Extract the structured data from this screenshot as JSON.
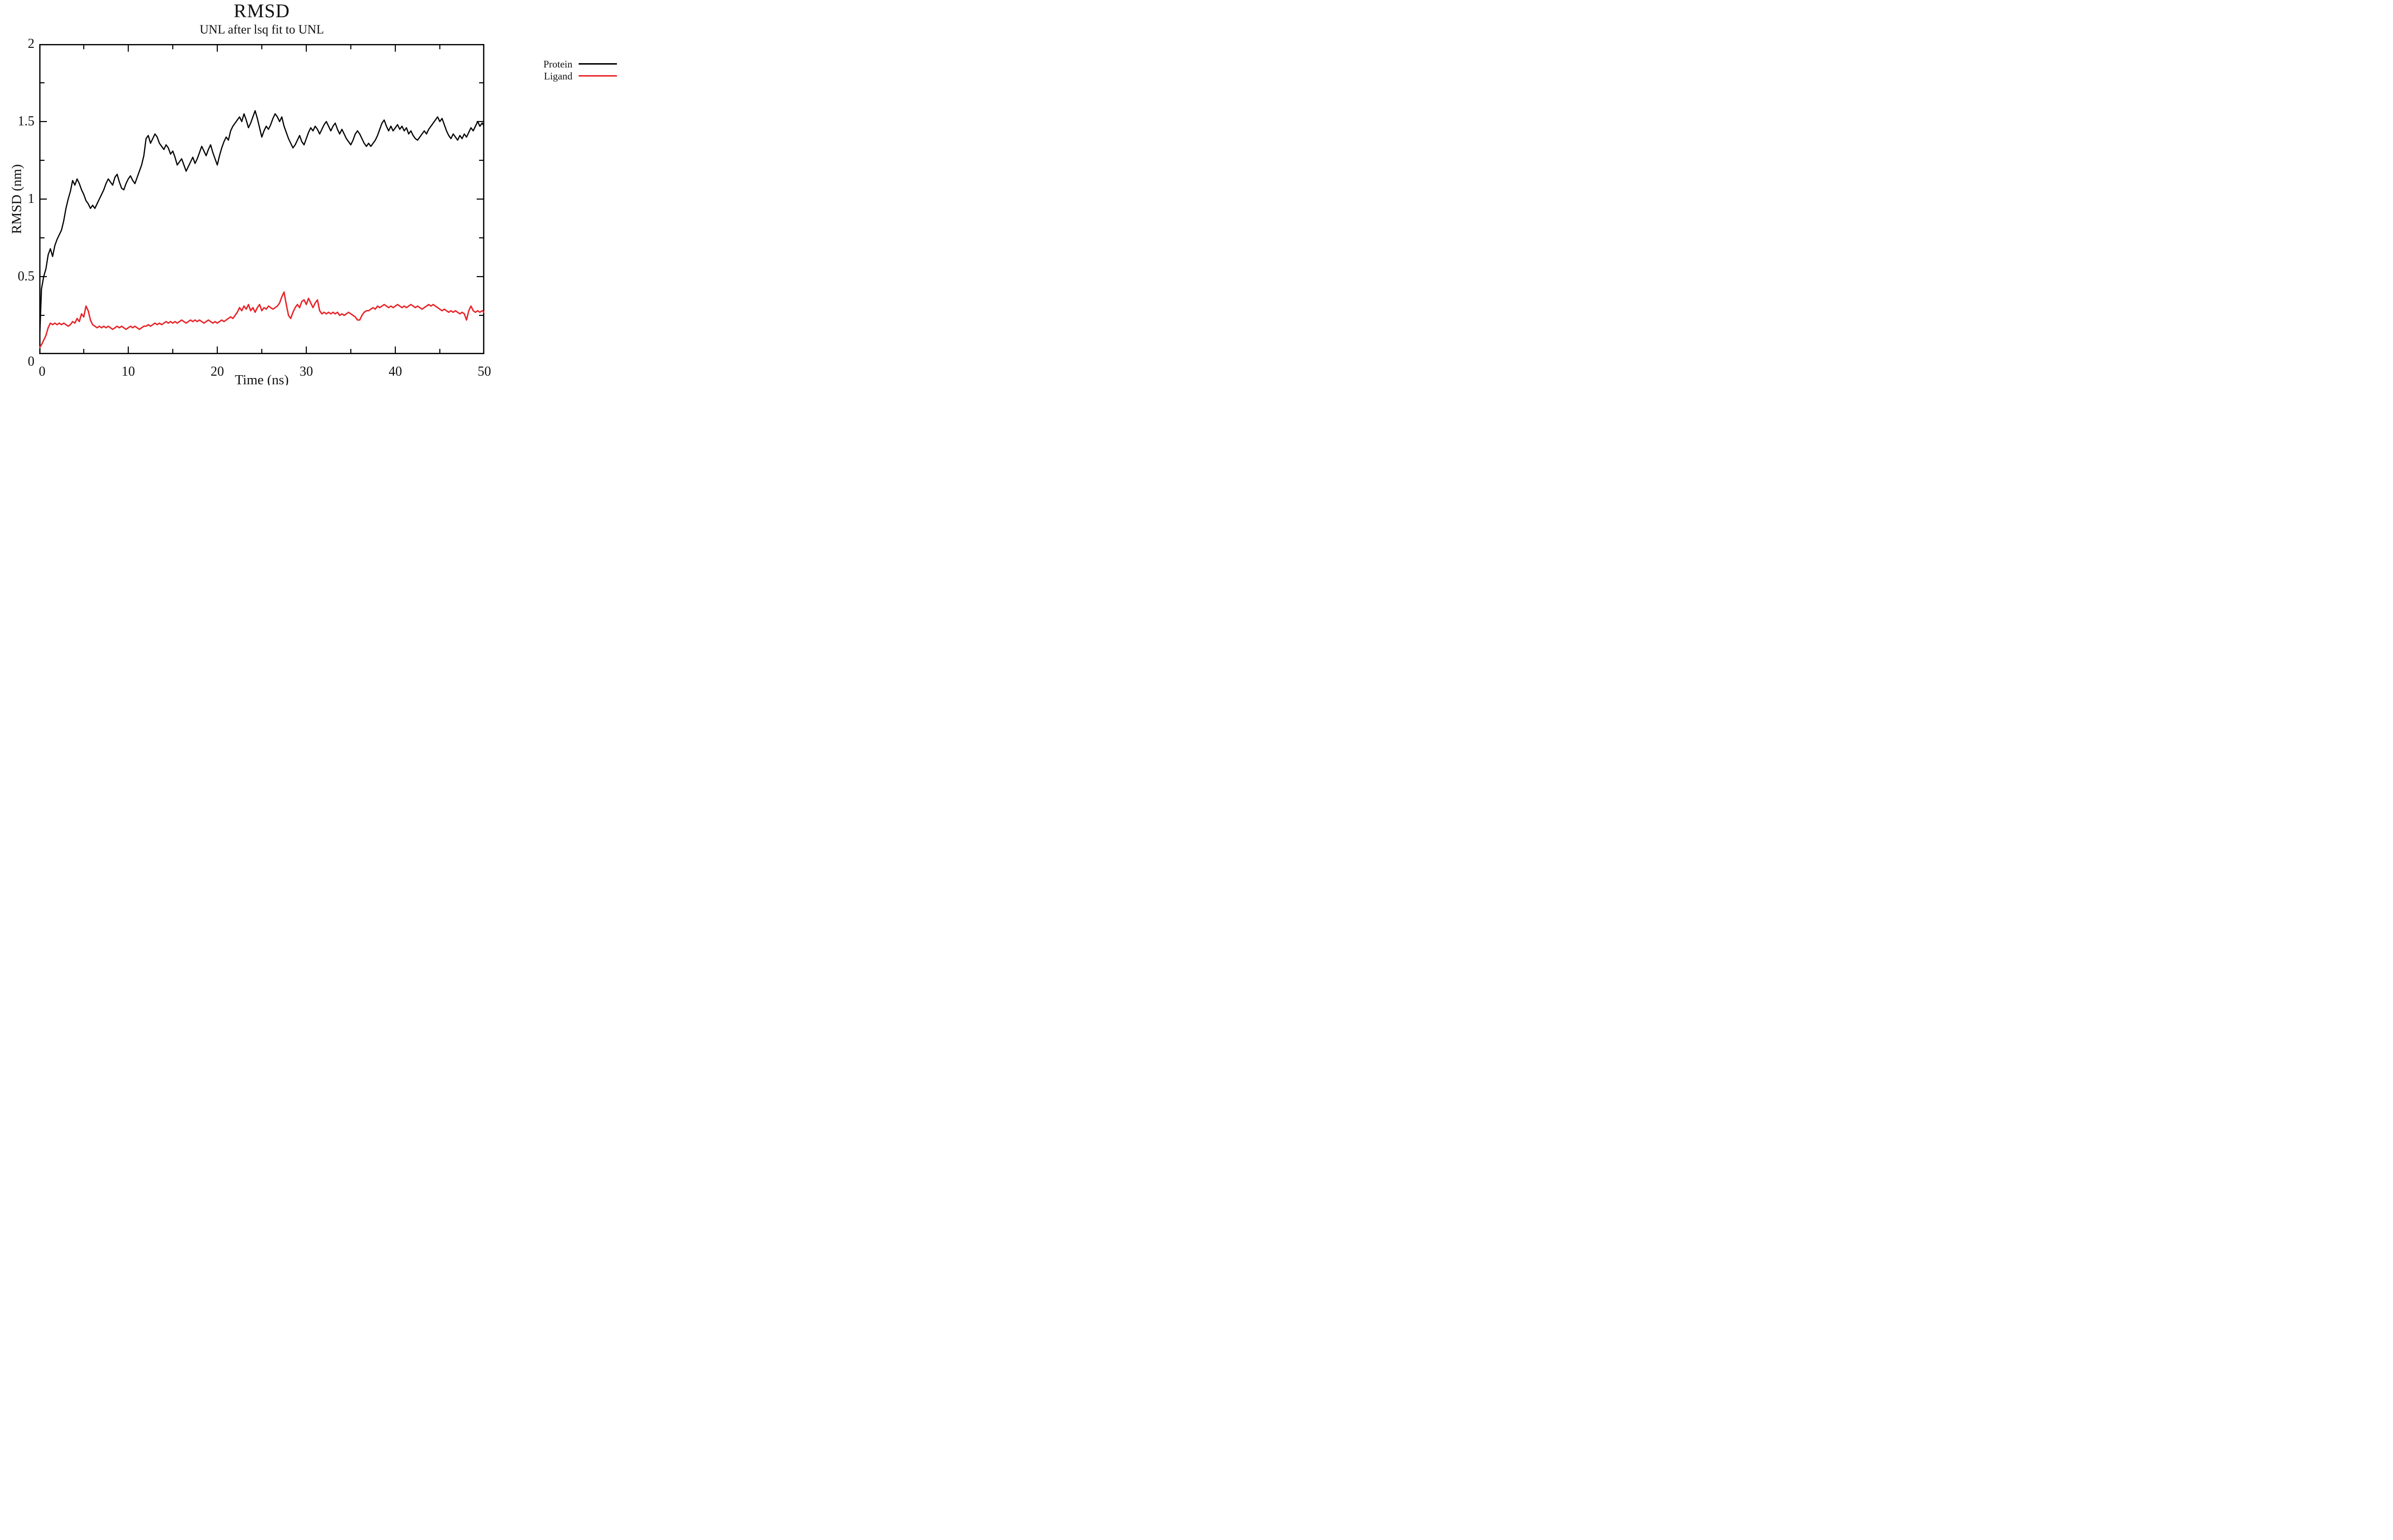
{
  "title": "RMSD",
  "subtitle": "UNL after lsq fit to UNL",
  "axes": {
    "x_label": "Time (ns)",
    "y_label": "RMSD (nm)"
  },
  "legend": [
    {
      "label": "Protein",
      "color": "#000000"
    },
    {
      "label": "Ligand",
      "color": "#e8262a"
    }
  ],
  "colors": {
    "frame": "#000000",
    "protein": "#000000",
    "ligand": "#e8262a"
  },
  "chart_data": {
    "type": "line",
    "title": "RMSD",
    "subtitle": "UNL after lsq fit to UNL",
    "xlabel": "Time (ns)",
    "ylabel": "RMSD (nm)",
    "xlim": [
      0,
      50
    ],
    "ylim": [
      0,
      2
    ],
    "grid": false,
    "legend_position": "upper-right-outside",
    "x_major_ticks": [
      0,
      10,
      20,
      30,
      40,
      50
    ],
    "x_major_labels": [
      "0",
      "10",
      "20",
      "30",
      "40",
      "50"
    ],
    "x_minor_ticks": [
      5,
      15,
      25,
      35,
      45
    ],
    "y_major_ticks": [
      0,
      0.5,
      1,
      1.5,
      2
    ],
    "y_major_labels": [
      "0",
      "0.5",
      "1",
      "1.5",
      "2"
    ],
    "y_minor_ticks": [
      0.25,
      0.75,
      1.25,
      1.75
    ],
    "x_start": 0,
    "x_step": 0.25,
    "series": [
      {
        "name": "Protein",
        "color": "#000000",
        "values": [
          0.03,
          0.42,
          0.5,
          0.55,
          0.64,
          0.68,
          0.63,
          0.7,
          0.74,
          0.77,
          0.8,
          0.86,
          0.94,
          1.0,
          1.05,
          1.12,
          1.09,
          1.13,
          1.1,
          1.06,
          1.03,
          0.99,
          0.97,
          0.94,
          0.96,
          0.94,
          0.97,
          1.0,
          1.03,
          1.06,
          1.1,
          1.13,
          1.11,
          1.09,
          1.14,
          1.16,
          1.11,
          1.07,
          1.06,
          1.1,
          1.13,
          1.15,
          1.12,
          1.1,
          1.14,
          1.18,
          1.22,
          1.28,
          1.39,
          1.41,
          1.36,
          1.39,
          1.42,
          1.4,
          1.36,
          1.34,
          1.32,
          1.35,
          1.33,
          1.29,
          1.31,
          1.27,
          1.22,
          1.24,
          1.26,
          1.22,
          1.18,
          1.21,
          1.24,
          1.27,
          1.23,
          1.26,
          1.3,
          1.34,
          1.31,
          1.28,
          1.32,
          1.35,
          1.3,
          1.26,
          1.22,
          1.28,
          1.33,
          1.37,
          1.4,
          1.38,
          1.44,
          1.47,
          1.49,
          1.51,
          1.53,
          1.5,
          1.55,
          1.51,
          1.46,
          1.49,
          1.53,
          1.57,
          1.52,
          1.46,
          1.4,
          1.44,
          1.47,
          1.45,
          1.48,
          1.52,
          1.55,
          1.53,
          1.5,
          1.53,
          1.47,
          1.43,
          1.39,
          1.36,
          1.33,
          1.35,
          1.38,
          1.41,
          1.37,
          1.35,
          1.39,
          1.43,
          1.46,
          1.44,
          1.47,
          1.45,
          1.42,
          1.45,
          1.48,
          1.5,
          1.47,
          1.44,
          1.47,
          1.49,
          1.45,
          1.42,
          1.45,
          1.42,
          1.39,
          1.37,
          1.35,
          1.38,
          1.42,
          1.44,
          1.42,
          1.39,
          1.36,
          1.34,
          1.36,
          1.34,
          1.36,
          1.38,
          1.41,
          1.45,
          1.49,
          1.51,
          1.47,
          1.44,
          1.47,
          1.44,
          1.46,
          1.48,
          1.45,
          1.47,
          1.44,
          1.46,
          1.42,
          1.44,
          1.41,
          1.39,
          1.38,
          1.4,
          1.42,
          1.44,
          1.42,
          1.45,
          1.47,
          1.49,
          1.51,
          1.53,
          1.5,
          1.52,
          1.48,
          1.44,
          1.41,
          1.39,
          1.42,
          1.4,
          1.38,
          1.41,
          1.39,
          1.42,
          1.4,
          1.43,
          1.46,
          1.44,
          1.47,
          1.5,
          1.47,
          1.49,
          1.47
        ]
      },
      {
        "name": "Ligand",
        "color": "#e8262a",
        "values": [
          0.04,
          0.06,
          0.09,
          0.12,
          0.17,
          0.2,
          0.19,
          0.2,
          0.19,
          0.2,
          0.19,
          0.2,
          0.19,
          0.18,
          0.19,
          0.21,
          0.2,
          0.23,
          0.21,
          0.26,
          0.24,
          0.31,
          0.28,
          0.22,
          0.19,
          0.18,
          0.17,
          0.18,
          0.17,
          0.18,
          0.17,
          0.18,
          0.17,
          0.16,
          0.17,
          0.18,
          0.17,
          0.18,
          0.17,
          0.16,
          0.17,
          0.18,
          0.17,
          0.18,
          0.17,
          0.16,
          0.17,
          0.18,
          0.18,
          0.19,
          0.18,
          0.19,
          0.2,
          0.19,
          0.2,
          0.19,
          0.2,
          0.21,
          0.2,
          0.21,
          0.2,
          0.21,
          0.2,
          0.21,
          0.22,
          0.21,
          0.2,
          0.21,
          0.22,
          0.21,
          0.22,
          0.21,
          0.22,
          0.21,
          0.2,
          0.21,
          0.22,
          0.21,
          0.2,
          0.21,
          0.2,
          0.21,
          0.22,
          0.21,
          0.22,
          0.23,
          0.24,
          0.23,
          0.25,
          0.27,
          0.3,
          0.28,
          0.31,
          0.29,
          0.32,
          0.28,
          0.3,
          0.27,
          0.3,
          0.32,
          0.28,
          0.3,
          0.29,
          0.31,
          0.3,
          0.29,
          0.3,
          0.31,
          0.33,
          0.37,
          0.4,
          0.32,
          0.25,
          0.23,
          0.27,
          0.3,
          0.32,
          0.3,
          0.34,
          0.35,
          0.32,
          0.36,
          0.33,
          0.3,
          0.33,
          0.35,
          0.28,
          0.26,
          0.27,
          0.26,
          0.27,
          0.26,
          0.27,
          0.26,
          0.27,
          0.25,
          0.26,
          0.25,
          0.26,
          0.27,
          0.26,
          0.25,
          0.24,
          0.22,
          0.22,
          0.25,
          0.27,
          0.28,
          0.28,
          0.29,
          0.3,
          0.29,
          0.31,
          0.3,
          0.31,
          0.32,
          0.31,
          0.3,
          0.31,
          0.3,
          0.31,
          0.32,
          0.31,
          0.3,
          0.31,
          0.3,
          0.31,
          0.32,
          0.31,
          0.3,
          0.31,
          0.3,
          0.29,
          0.3,
          0.31,
          0.32,
          0.31,
          0.32,
          0.31,
          0.3,
          0.29,
          0.28,
          0.29,
          0.28,
          0.27,
          0.28,
          0.27,
          0.28,
          0.27,
          0.26,
          0.27,
          0.26,
          0.22,
          0.28,
          0.31,
          0.28,
          0.27,
          0.28,
          0.27,
          0.28,
          0.27
        ]
      }
    ]
  }
}
